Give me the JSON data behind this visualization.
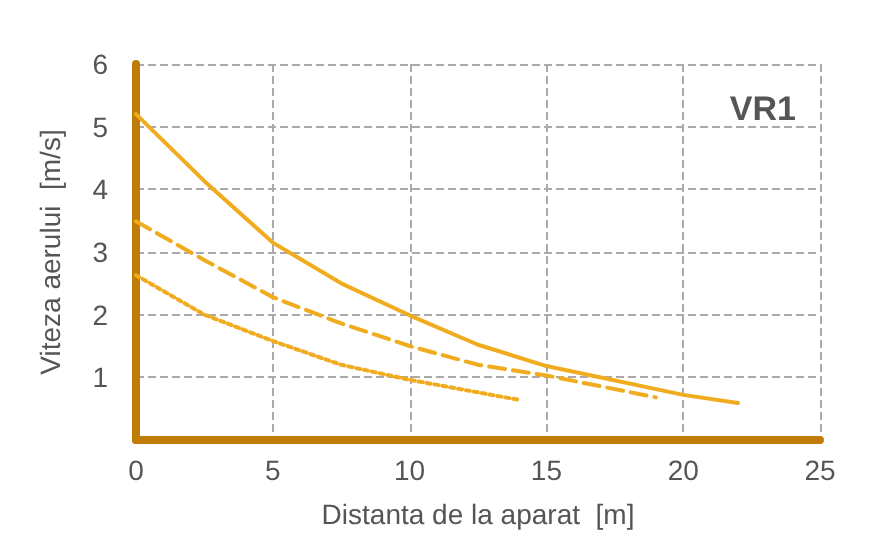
{
  "chart_data": {
    "type": "line",
    "xlabel": "Distanta de la aparat  [m]",
    "ylabel": "Viteza aerului  [m/s]",
    "annotations": [
      "VR1"
    ],
    "xlim": [
      0,
      25
    ],
    "xticks": [
      0,
      5,
      10,
      15,
      20,
      25
    ],
    "ylim": [
      0,
      6
    ],
    "yticks": [
      1,
      2,
      3,
      4,
      5,
      6
    ],
    "grid": true,
    "marker": "none",
    "series": [
      {
        "color": "#f0ac1e",
        "line_style": "solid",
        "x": [
          0,
          2.5,
          5,
          7.5,
          10,
          12.5,
          15,
          20,
          22
        ],
        "values": [
          5.2,
          4.13,
          3.15,
          2.5,
          1.99,
          1.52,
          1.18,
          0.72,
          0.59
        ]
      },
      {
        "color": "#f0ac1e",
        "line_style": "dashed",
        "x": [
          0,
          2.5,
          5,
          7.5,
          10,
          12.5,
          15,
          19
        ],
        "values": [
          3.49,
          2.87,
          2.28,
          1.86,
          1.5,
          1.2,
          1.03,
          0.68
        ]
      },
      {
        "color": "#f0ac1e",
        "line_style": "dotted",
        "x": [
          0,
          2.5,
          5,
          7.5,
          10,
          14
        ],
        "values": [
          2.63,
          2.0,
          1.58,
          1.2,
          0.96,
          0.64
        ]
      }
    ]
  }
}
